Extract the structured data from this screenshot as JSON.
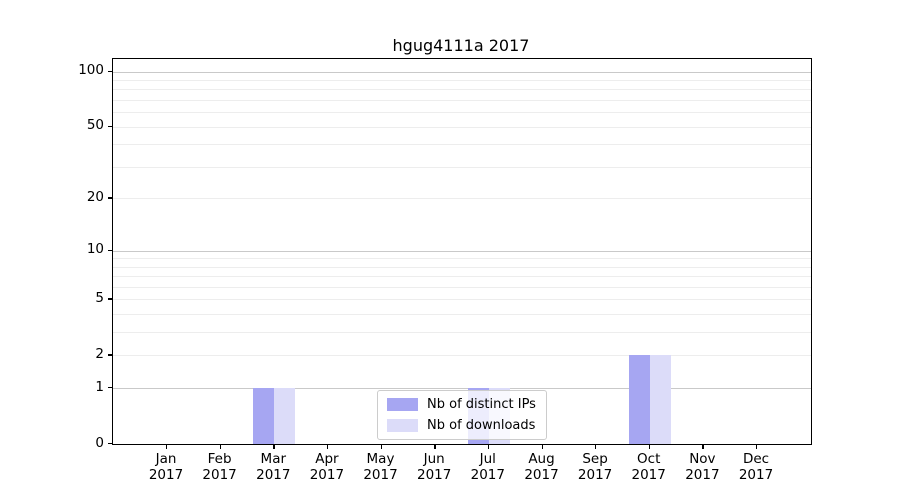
{
  "title": "hgug4111a 2017",
  "chart_data": {
    "type": "bar",
    "title": "hgug4111a 2017",
    "categories": [
      "Jan",
      "Feb",
      "Mar",
      "Apr",
      "May",
      "Jun",
      "Jul",
      "Aug",
      "Sep",
      "Oct",
      "Nov",
      "Dec"
    ],
    "x_tick_year": "2017",
    "series": [
      {
        "name": "Nb of distinct IPs",
        "color": "#a6a6f2",
        "values": [
          0,
          0,
          1,
          0,
          0,
          0,
          1,
          0,
          0,
          2,
          0,
          0
        ]
      },
      {
        "name": "Nb of downloads",
        "color": "#dcdcf9",
        "values": [
          0,
          0,
          1,
          0,
          0,
          0,
          1,
          0,
          0,
          2,
          0,
          0
        ]
      }
    ],
    "xlabel": "",
    "ylabel": "",
    "yscale": "log1p",
    "y_ticks": [
      0,
      1,
      2,
      5,
      10,
      20,
      50,
      100
    ],
    "ylim": [
      0,
      117
    ],
    "grid": {
      "major_values": [
        1,
        10,
        100
      ],
      "minor_values": [
        2,
        3,
        4,
        5,
        6,
        7,
        8,
        9,
        20,
        30,
        40,
        50,
        60,
        70,
        80,
        90
      ]
    },
    "legend_position": "lower center"
  }
}
